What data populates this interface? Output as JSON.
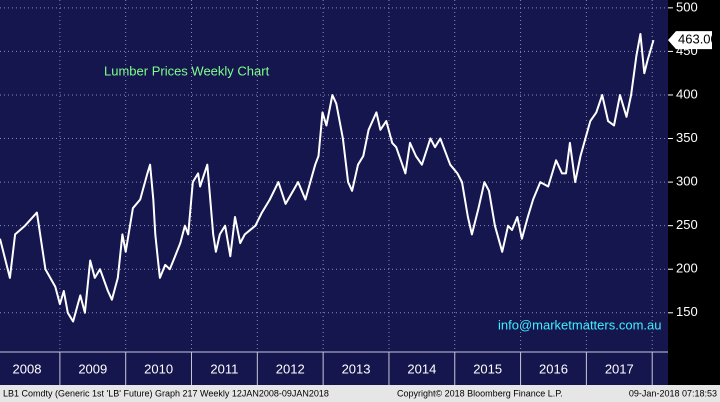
{
  "chart_data": {
    "type": "line",
    "title": "Lumber Prices Weekly Chart",
    "annotation": "info@marketmatters.com.au",
    "color": "#ffffff",
    "x": [
      2008.09,
      2008.24,
      2008.32,
      2008.47,
      2008.65,
      2008.78,
      2008.93,
      2009.0,
      2009.06,
      2009.12,
      2009.2,
      2009.31,
      2009.38,
      2009.46,
      2009.53,
      2009.61,
      2009.73,
      2009.79,
      2009.88,
      2009.95,
      2010.0,
      2010.11,
      2010.22,
      2010.33,
      2010.37,
      2010.42,
      2010.45,
      2010.49,
      2010.52,
      2010.6,
      2010.67,
      2010.75,
      2010.83,
      2010.9,
      2010.95,
      2011.02,
      2011.1,
      2011.13,
      2011.24,
      2011.28,
      2011.33,
      2011.37,
      2011.43,
      2011.51,
      2011.59,
      2011.66,
      2011.74,
      2011.81,
      2011.97,
      2012.07,
      2012.19,
      2012.32,
      2012.43,
      2012.62,
      2012.73,
      2012.88,
      2012.93,
      2012.99,
      2013.05,
      2013.14,
      2013.2,
      2013.3,
      2013.38,
      2013.44,
      2013.53,
      2013.61,
      2013.69,
      2013.81,
      2013.87,
      2013.96,
      2014.05,
      2014.11,
      2014.25,
      2014.32,
      2014.41,
      2014.5,
      2014.63,
      2014.7,
      2014.78,
      2014.93,
      2015.04,
      2015.11,
      2015.2,
      2015.26,
      2015.36,
      2015.45,
      2015.52,
      2015.61,
      2015.72,
      2015.81,
      2015.87,
      2015.95,
      2016.02,
      2016.11,
      2016.19,
      2016.3,
      2016.42,
      2016.54,
      2016.63,
      2016.69,
      2016.75,
      2016.83,
      2016.91,
      2017.06,
      2017.15,
      2017.24,
      2017.33,
      2017.42,
      2017.51,
      2017.61,
      2017.68,
      2017.76,
      2017.82,
      2017.88,
      2017.93,
      2018.02
    ],
    "values": [
      235,
      190,
      240,
      250,
      265,
      200,
      180,
      160,
      175,
      150,
      140,
      170,
      150,
      210,
      190,
      200,
      175,
      165,
      190,
      240,
      220,
      270,
      280,
      310,
      320,
      280,
      240,
      210,
      190,
      205,
      200,
      215,
      230,
      250,
      240,
      300,
      310,
      295,
      320,
      285,
      240,
      220,
      240,
      250,
      215,
      260,
      230,
      240,
      250,
      265,
      280,
      300,
      275,
      300,
      280,
      320,
      330,
      380,
      365,
      400,
      390,
      350,
      300,
      290,
      320,
      330,
      360,
      380,
      360,
      370,
      345,
      340,
      310,
      345,
      330,
      320,
      350,
      340,
      350,
      320,
      310,
      300,
      260,
      240,
      270,
      300,
      290,
      250,
      220,
      250,
      245,
      260,
      235,
      260,
      280,
      300,
      295,
      325,
      310,
      310,
      345,
      300,
      330,
      370,
      380,
      400,
      370,
      365,
      400,
      375,
      400,
      445,
      470,
      425,
      440,
      463
    ],
    "last_price": {
      "value": 463,
      "label": "463.00"
    },
    "xlim": [
      2008.09,
      2018.24
    ],
    "xticks": [
      {
        "value": 2008.5,
        "label": "2008"
      },
      {
        "value": 2009.5,
        "label": "2009"
      },
      {
        "value": 2010.5,
        "label": "2010"
      },
      {
        "value": 2011.5,
        "label": "2011"
      },
      {
        "value": 2012.5,
        "label": "2012"
      },
      {
        "value": 2013.5,
        "label": "2013"
      },
      {
        "value": 2014.5,
        "label": "2014"
      },
      {
        "value": 2015.5,
        "label": "2015"
      },
      {
        "value": 2016.5,
        "label": "2016"
      },
      {
        "value": 2017.5,
        "label": "2017"
      }
    ],
    "ylim": [
      105,
      509
    ],
    "yticks": [
      150,
      200,
      250,
      300,
      350,
      400,
      450,
      500
    ],
    "grid": true
  },
  "footer": {
    "left": "LB1 Comdty (Generic 1st 'LB' Future) Graph 217  Weekly 12JAN2008-09JAN2018",
    "center": "Copyright© 2018 Bloomberg Finance L.P.",
    "right": "09-Jan-2018 07:18:53"
  }
}
